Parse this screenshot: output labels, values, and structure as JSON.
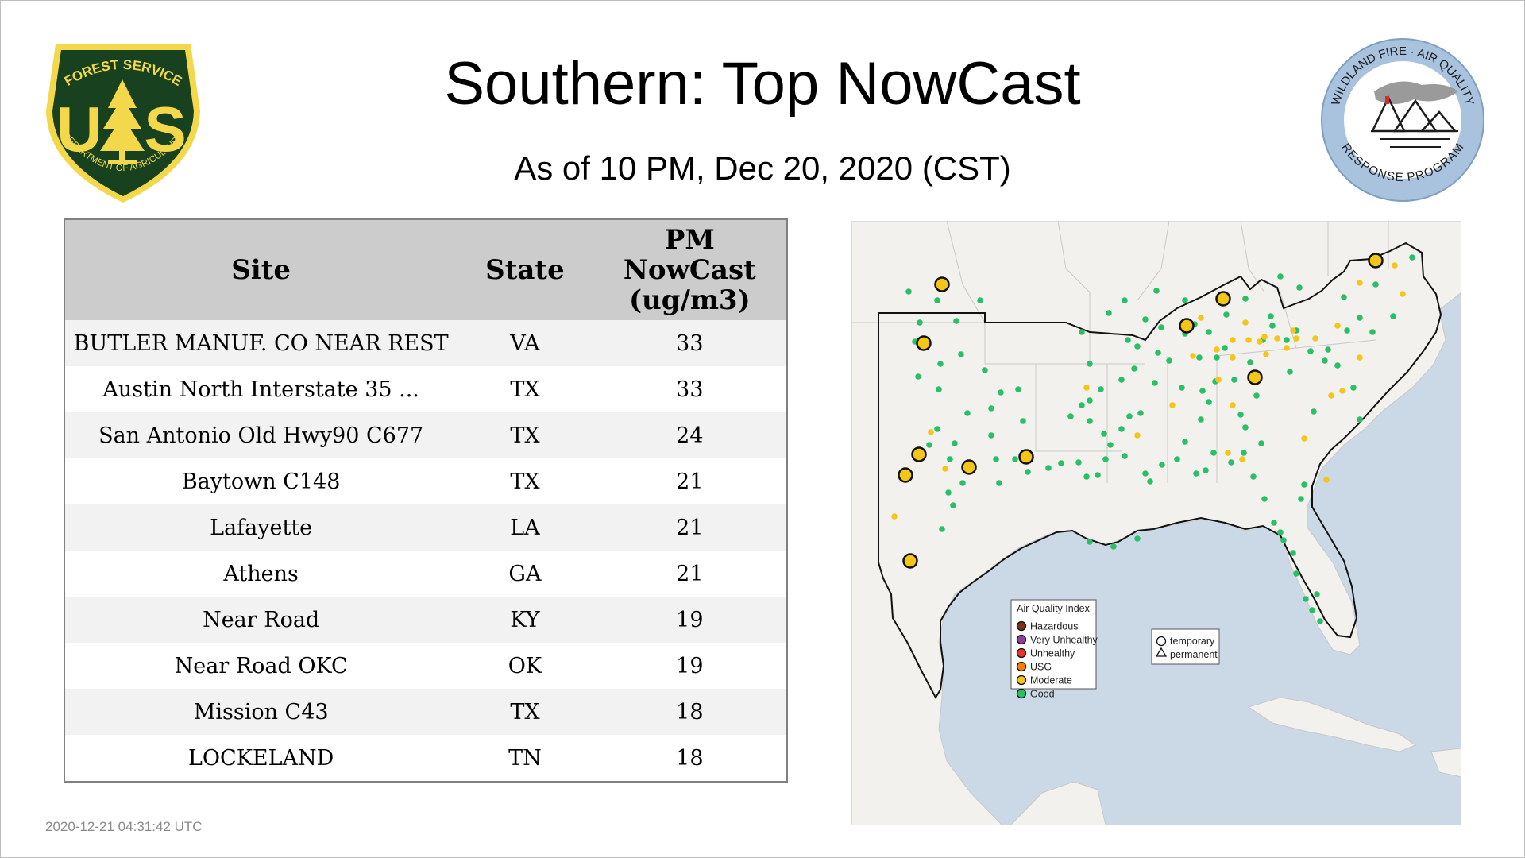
{
  "title": "Southern: Top NowCast",
  "subtitle": "As of 10 PM, Dec 20, 2020 (CST)",
  "usfs_logo": {
    "top_text": "FOREST SERVICE",
    "letters_left": "U",
    "letters_right": "S",
    "bottom_text": "DEPARTMENT OF AGRICULTURE"
  },
  "wfaq_logo": {
    "top_text": "WILDLAND FIRE · AIR QUALITY",
    "bottom_text": "RESPONSE PROGRAM"
  },
  "table": {
    "headers": {
      "site": "Site",
      "state": "State",
      "pm_line1": "PM",
      "pm_line2": "NowCast",
      "pm_line3": "(ug/m3)"
    },
    "rows": [
      {
        "site": "BUTLER MANUF. CO NEAR REST",
        "state": "VA",
        "pm": "33"
      },
      {
        "site": "Austin North Interstate 35 ...",
        "state": "TX",
        "pm": "33"
      },
      {
        "site": "San Antonio Old Hwy90 C677",
        "state": "TX",
        "pm": "24"
      },
      {
        "site": "Baytown C148",
        "state": "TX",
        "pm": "21"
      },
      {
        "site": "Lafayette",
        "state": "LA",
        "pm": "21"
      },
      {
        "site": "Athens",
        "state": "GA",
        "pm": "21"
      },
      {
        "site": "Near Road",
        "state": "KY",
        "pm": "19"
      },
      {
        "site": "Near Road OKC",
        "state": "OK",
        "pm": "19"
      },
      {
        "site": "Mission C43",
        "state": "TX",
        "pm": "18"
      },
      {
        "site": "LOCKELAND",
        "state": "TN",
        "pm": "18"
      }
    ]
  },
  "map": {
    "legend_title": "Air Quality Index",
    "legend_items": [
      {
        "label": "Hazardous",
        "color": "#7e2f1e"
      },
      {
        "label": "Very Unhealthy",
        "color": "#8f3f97"
      },
      {
        "label": "Unhealthy",
        "color": "#e8342a"
      },
      {
        "label": "USG",
        "color": "#ff7e00"
      },
      {
        "label": "Moderate",
        "color": "#f5c518"
      },
      {
        "label": "Good",
        "color": "#27c165"
      }
    ],
    "shape_items": [
      {
        "label": "temporary",
        "icon": "circle-icon"
      },
      {
        "label": "permanent",
        "icon": "triangle-icon"
      }
    ],
    "colors": {
      "water": "#cbd9e6",
      "land": "#f3f1ee",
      "good": "#27c165",
      "moderate": "#f5c518"
    }
  },
  "timestamp": "2020-12-21 04:31:42 UTC"
}
